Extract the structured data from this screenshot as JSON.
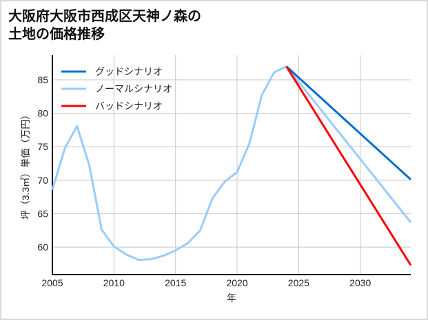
{
  "chart_data": {
    "type": "line",
    "title_line1": "大阪府大阪市西成区天神ノ森の",
    "title_line2": "土地の価格推移",
    "xlabel": "年",
    "ylabel": "坪（3.3㎡）単価（万円）",
    "xlim": [
      2005,
      2034.1
    ],
    "ylim": [
      55.9,
      88.7
    ],
    "xticks": [
      2005,
      2010,
      2015,
      2020,
      2025,
      2030
    ],
    "yticks": [
      60,
      65,
      70,
      75,
      80,
      85
    ],
    "grid": true,
    "legend_position": "top-left",
    "historical": {
      "x": [
        2005,
        2006,
        2007,
        2008,
        2009,
        2010,
        2011,
        2012,
        2013,
        2014,
        2015,
        2016,
        2017,
        2018,
        2019,
        2020,
        2021,
        2022,
        2023,
        2024
      ],
      "y": [
        68.6,
        74.7,
        78.1,
        72.2,
        62.6,
        60.1,
        58.9,
        58.1,
        58.2,
        58.7,
        59.5,
        60.6,
        62.5,
        67.3,
        69.8,
        71.2,
        75.5,
        82.7,
        86.1,
        87.0
      ]
    },
    "series": [
      {
        "name": "グッドシナリオ",
        "color": "#0070cc",
        "x": [
          2024,
          2034.1
        ],
        "y": [
          87.0,
          70.1
        ]
      },
      {
        "name": "ノーマルシナリオ",
        "color": "#99ccff",
        "x": [
          2024,
          2034.1
        ],
        "y": [
          87.0,
          63.7
        ]
      },
      {
        "name": "バッドシナリオ",
        "color": "#ff0000",
        "x": [
          2024,
          2034.1
        ],
        "y": [
          87.0,
          57.3
        ]
      }
    ]
  }
}
